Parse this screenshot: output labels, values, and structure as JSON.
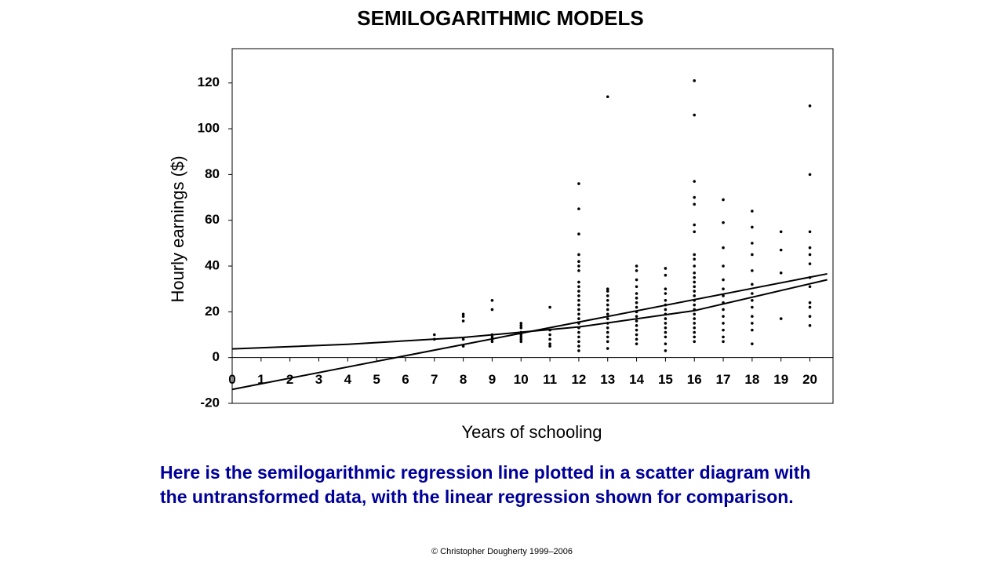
{
  "chart_data": {
    "type": "scatter",
    "title": "SEMILOGARITHMIC MODELS",
    "x_label": "Years of schooling",
    "y_label": "Hourly earnings ($)",
    "xlim": [
      0,
      20.8
    ],
    "ylim": [
      -20,
      135
    ],
    "xticks": [
      0,
      1,
      2,
      3,
      4,
      5,
      6,
      7,
      8,
      9,
      10,
      11,
      12,
      13,
      14,
      15,
      16,
      17,
      18,
      19,
      20
    ],
    "yticks": [
      -20,
      0,
      20,
      40,
      60,
      80,
      100,
      120
    ],
    "grid": false,
    "color": "#000000",
    "series": [
      {
        "type": "scatter",
        "color": "#000000",
        "x": [
          7,
          7,
          8,
          8,
          8,
          8,
          8,
          9,
          9,
          9,
          9,
          9,
          9,
          10,
          10,
          10,
          10,
          10,
          10,
          10,
          10,
          11,
          11,
          11,
          11,
          11,
          11,
          12,
          12,
          12,
          12,
          12,
          12,
          12,
          12,
          12,
          12,
          12,
          12,
          12,
          12,
          12,
          12,
          12,
          12,
          12,
          12,
          12,
          12,
          12,
          13,
          13,
          13,
          13,
          13,
          13,
          13,
          13,
          13,
          13,
          13,
          13,
          13,
          13,
          13,
          14,
          14,
          14,
          14,
          14,
          14,
          14,
          14,
          14,
          14,
          14,
          14,
          14,
          14,
          14,
          14,
          15,
          15,
          15,
          15,
          15,
          15,
          15,
          15,
          15,
          15,
          15,
          15,
          15,
          15,
          15,
          16,
          16,
          16,
          16,
          16,
          16,
          16,
          16,
          16,
          16,
          16,
          16,
          16,
          16,
          16,
          16,
          16,
          16,
          16,
          16,
          16,
          16,
          16,
          16,
          16,
          16,
          17,
          17,
          17,
          17,
          17,
          17,
          17,
          17,
          17,
          17,
          17,
          17,
          17,
          17,
          18,
          18,
          18,
          18,
          18,
          18,
          18,
          18,
          18,
          18,
          18,
          18,
          18,
          19,
          19,
          19,
          19,
          20,
          20,
          20,
          20,
          20,
          20,
          20,
          20,
          20,
          20,
          20,
          20
        ],
        "values": [
          10,
          8,
          19,
          18,
          16,
          8,
          5,
          25,
          21,
          10,
          9,
          8,
          7,
          15,
          14,
          13,
          11,
          10,
          9,
          8,
          7,
          22,
          12,
          10,
          8,
          6,
          5,
          76,
          65,
          54,
          45,
          42,
          40,
          38,
          33,
          31,
          29,
          27,
          25,
          23,
          21,
          19,
          17,
          15,
          13,
          11,
          9,
          7,
          5,
          3,
          114,
          30,
          29,
          27,
          25,
          23,
          21,
          19,
          17,
          15,
          13,
          11,
          9,
          7,
          4,
          40,
          38,
          34,
          31,
          28,
          26,
          24,
          22,
          20,
          18,
          16,
          14,
          12,
          10,
          8,
          6,
          39,
          36,
          30,
          28,
          25,
          23,
          21,
          19,
          17,
          15,
          13,
          11,
          9,
          6,
          3,
          121,
          106,
          77,
          70,
          67,
          58,
          55,
          45,
          43,
          40,
          37,
          35,
          33,
          31,
          29,
          27,
          25,
          23,
          21,
          19,
          17,
          15,
          13,
          11,
          9,
          7,
          69,
          59,
          48,
          40,
          34,
          30,
          27,
          24,
          21,
          18,
          15,
          12,
          9,
          7,
          64,
          57,
          50,
          45,
          38,
          32,
          28,
          25,
          22,
          18,
          15,
          12,
          6,
          55,
          47,
          37,
          17,
          110,
          80,
          55,
          48,
          45,
          41,
          35,
          31,
          24,
          22,
          18,
          14
        ]
      },
      {
        "type": "line",
        "color": "#000000",
        "x": [
          0,
          20.6
        ],
        "values": [
          -13.9,
          36.6
        ]
      },
      {
        "type": "line",
        "color": "#000000",
        "x": [
          0,
          4,
          8,
          12,
          16,
          20.6
        ],
        "values": [
          3.8,
          5.8,
          8.8,
          13.4,
          20.5,
          34
        ]
      }
    ],
    "annotations": [
      "Here is the semilogarithmic regression line plotted in a scatter diagram with",
      "the untransformed data, with the linear regression shown for comparison."
    ],
    "footer": "© Christopher Dougherty 1999–2006"
  }
}
